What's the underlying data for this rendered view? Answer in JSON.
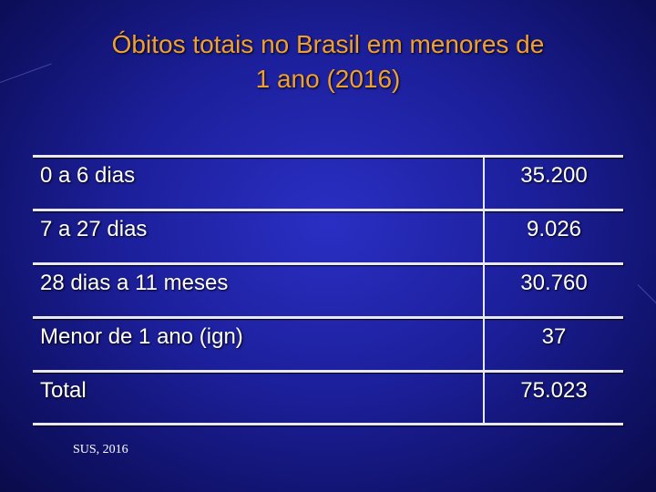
{
  "slide": {
    "title_line1": "Óbitos totais no Brasil em menores de",
    "title_line2": "1 ano (2016)",
    "source": "SUS, 2016"
  },
  "table": {
    "rows": [
      {
        "label": "0 a 6 dias",
        "value": "35.200"
      },
      {
        "label": "7 a 27 dias",
        "value": "9.026"
      },
      {
        "label": "28 dias a 11 meses",
        "value": "30.760"
      },
      {
        "label": "Menor de 1 ano (ign)",
        "value": "37"
      },
      {
        "label": "Total",
        "value": "75.023"
      }
    ]
  },
  "colors": {
    "background": "#1c1f9a",
    "title": "#f0a030",
    "text": "#ffffff",
    "rule": "#e8e8f5"
  }
}
